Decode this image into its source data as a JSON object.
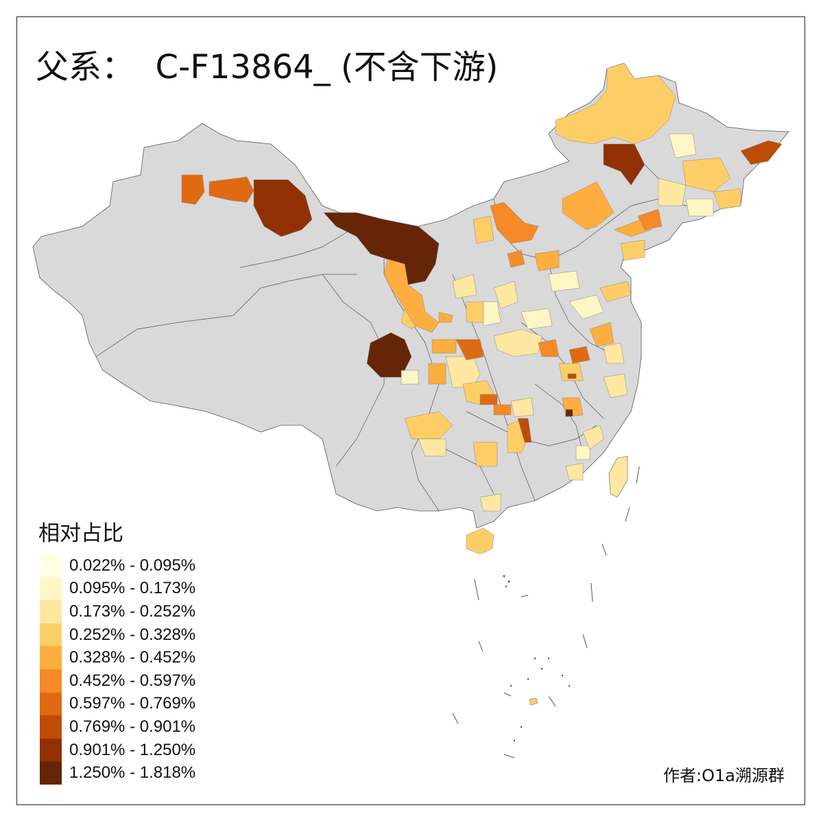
{
  "title": "父系：  C-F13864_ (不含下游)",
  "legend": {
    "title": "相对占比",
    "items": [
      {
        "label": "0.022% - 0.095%",
        "color": "#ffffe5"
      },
      {
        "label": "0.095% - 0.173%",
        "color": "#fff6c5"
      },
      {
        "label": "0.173% - 0.252%",
        "color": "#fee7a0"
      },
      {
        "label": "0.252% - 0.328%",
        "color": "#fece66"
      },
      {
        "label": "0.328% - 0.452%",
        "color": "#feae3e"
      },
      {
        "label": "0.452% - 0.597%",
        "color": "#f58a26"
      },
      {
        "label": "0.597% - 0.769%",
        "color": "#e06a12"
      },
      {
        "label": "0.769% - 0.901%",
        "color": "#bf4c05"
      },
      {
        "label": "0.901% - 1.250%",
        "color": "#913103"
      },
      {
        "label": "1.250% - 1.818%",
        "color": "#662506"
      }
    ]
  },
  "credit": "作者:O1a溯源群",
  "colors": {
    "no_data": "#d9d9d9",
    "border": "#555555",
    "frame": "#222222"
  }
}
